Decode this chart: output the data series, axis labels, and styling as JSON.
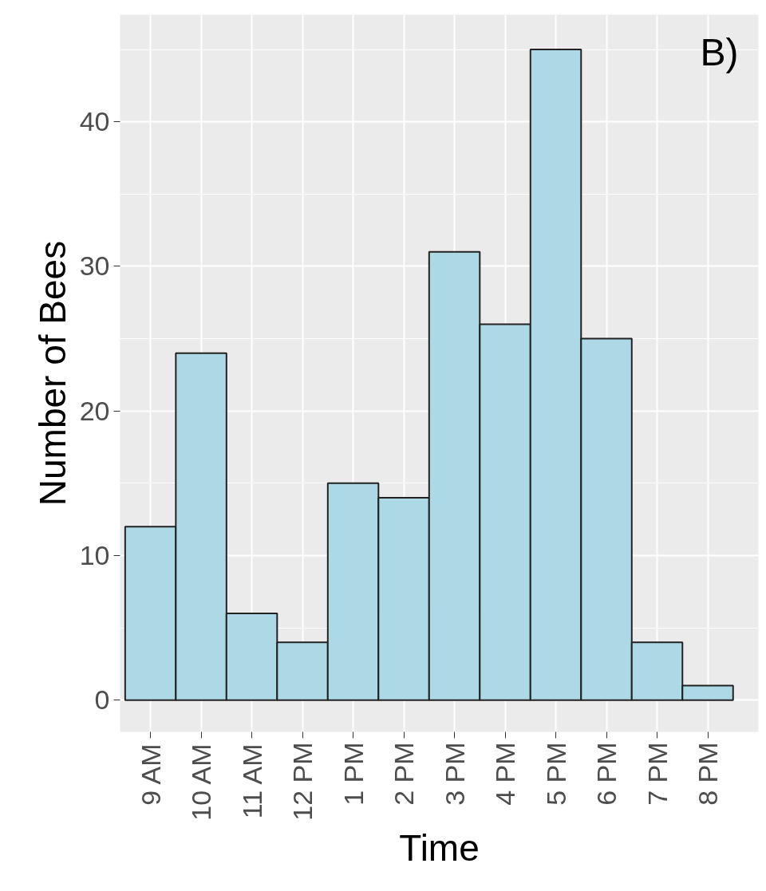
{
  "chart_data": {
    "type": "bar",
    "xlabel": "Time",
    "ylabel": "Number of Bees",
    "categories": [
      "9 AM",
      "10 AM",
      "11 AM",
      "12 PM",
      "1 PM",
      "2 PM",
      "3 PM",
      "4 PM",
      "5 PM",
      "6 PM",
      "7 PM",
      "8 PM"
    ],
    "values": [
      12,
      24,
      6,
      4,
      15,
      14,
      31,
      26,
      45,
      25,
      4,
      1
    ],
    "color": "#add8e6",
    "ylim": [
      -2.2,
      47.4
    ],
    "yticks": [
      0,
      10,
      20,
      30,
      40
    ],
    "grid": true,
    "annotations": [
      "B)"
    ]
  }
}
